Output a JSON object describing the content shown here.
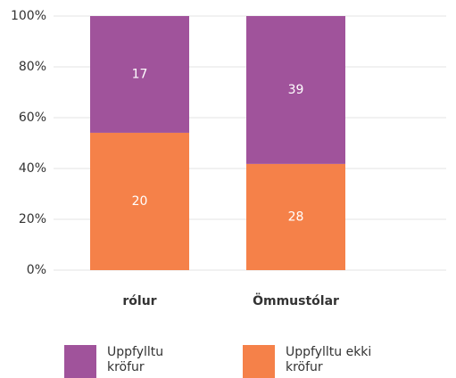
{
  "chart_data": {
    "type": "bar",
    "stacking": "percent",
    "categories": [
      "rólur",
      "Ömmustólar"
    ],
    "series": [
      {
        "name": "Uppfylltu kröfur",
        "color": "#a0539b",
        "values": [
          17,
          39
        ]
      },
      {
        "name": "Uppfylltu ekki kröfur",
        "color": "#f58149",
        "values": [
          20,
          28
        ]
      }
    ],
    "ylim": [
      0,
      100
    ],
    "yticks": [
      {
        "value": 0,
        "label": "0%"
      },
      {
        "value": 20,
        "label": "20%"
      },
      {
        "value": 40,
        "label": "40%"
      },
      {
        "value": 60,
        "label": "60%"
      },
      {
        "value": 80,
        "label": "80%"
      },
      {
        "value": 100,
        "label": "100%"
      }
    ],
    "grid": true
  }
}
